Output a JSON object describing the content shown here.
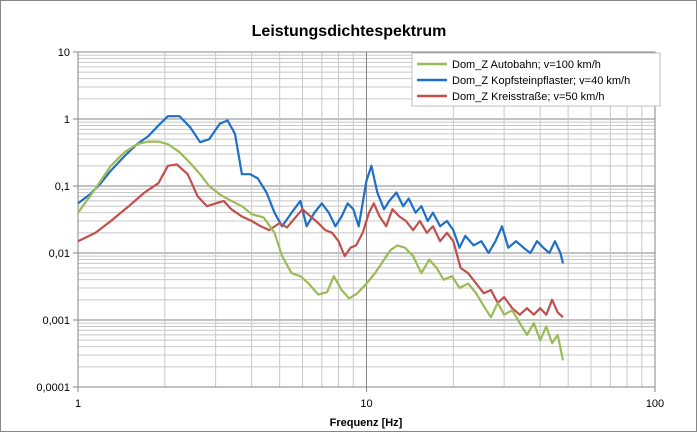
{
  "chart_data": {
    "type": "line",
    "title": "Leistungsdichtespektrum",
    "xlabel": "Frequenz [Hz]",
    "ylabel": "",
    "x_scale": "log",
    "y_scale": "log",
    "xlim": [
      1,
      100
    ],
    "ylim": [
      0.0001,
      10
    ],
    "x_ticks": [
      "1",
      "10",
      "100"
    ],
    "y_ticks": [
      "0,0001",
      "0,001",
      "0,01",
      "0,1",
      "1",
      "10"
    ],
    "grid": true,
    "legend_position": "top-right",
    "series": [
      {
        "name": "Dom_Z Autobahn; v=100 km/h",
        "color": "#9bbb59",
        "points": [
          [
            1.0,
            0.04
          ],
          [
            1.1,
            0.07
          ],
          [
            1.2,
            0.12
          ],
          [
            1.3,
            0.2
          ],
          [
            1.45,
            0.32
          ],
          [
            1.6,
            0.42
          ],
          [
            1.75,
            0.46
          ],
          [
            1.9,
            0.46
          ],
          [
            2.05,
            0.42
          ],
          [
            2.25,
            0.32
          ],
          [
            2.45,
            0.22
          ],
          [
            2.65,
            0.15
          ],
          [
            2.85,
            0.1
          ],
          [
            3.1,
            0.075
          ],
          [
            3.4,
            0.06
          ],
          [
            3.7,
            0.05
          ],
          [
            4.0,
            0.038
          ],
          [
            4.4,
            0.034
          ],
          [
            4.8,
            0.02
          ],
          [
            5.1,
            0.009
          ],
          [
            5.5,
            0.005
          ],
          [
            5.9,
            0.0045
          ],
          [
            6.3,
            0.0035
          ],
          [
            6.8,
            0.0024
          ],
          [
            7.3,
            0.0026
          ],
          [
            7.7,
            0.0045
          ],
          [
            8.2,
            0.0028
          ],
          [
            8.7,
            0.0021
          ],
          [
            9.3,
            0.0025
          ],
          [
            10.0,
            0.0035
          ],
          [
            10.7,
            0.005
          ],
          [
            11.4,
            0.0075
          ],
          [
            12.1,
            0.011
          ],
          [
            12.8,
            0.013
          ],
          [
            13.6,
            0.012
          ],
          [
            14.5,
            0.009
          ],
          [
            15.5,
            0.005
          ],
          [
            16.5,
            0.008
          ],
          [
            17.5,
            0.006
          ],
          [
            18.5,
            0.004
          ],
          [
            19.8,
            0.0045
          ],
          [
            21.0,
            0.003
          ],
          [
            22.5,
            0.0035
          ],
          [
            24.0,
            0.0025
          ],
          [
            25.5,
            0.0016
          ],
          [
            27.0,
            0.0011
          ],
          [
            28.5,
            0.0018
          ],
          [
            30.0,
            0.0012
          ],
          [
            32.0,
            0.0014
          ],
          [
            34.0,
            0.0009
          ],
          [
            36.0,
            0.0006
          ],
          [
            38.0,
            0.0009
          ],
          [
            40.0,
            0.0005
          ],
          [
            42.0,
            0.0008
          ],
          [
            44.0,
            0.00045
          ],
          [
            46.0,
            0.0006
          ],
          [
            48.0,
            0.00025
          ]
        ]
      },
      {
        "name": "Dom_Z Kopfsteinpflaster; v=40 km/h",
        "color": "#1f6fc6",
        "points": [
          [
            1.0,
            0.055
          ],
          [
            1.1,
            0.075
          ],
          [
            1.2,
            0.11
          ],
          [
            1.3,
            0.17
          ],
          [
            1.45,
            0.28
          ],
          [
            1.6,
            0.42
          ],
          [
            1.75,
            0.55
          ],
          [
            1.9,
            0.8
          ],
          [
            2.05,
            1.1
          ],
          [
            2.25,
            1.1
          ],
          [
            2.45,
            0.75
          ],
          [
            2.65,
            0.45
          ],
          [
            2.85,
            0.5
          ],
          [
            3.1,
            0.85
          ],
          [
            3.3,
            0.95
          ],
          [
            3.5,
            0.6
          ],
          [
            3.7,
            0.15
          ],
          [
            3.95,
            0.15
          ],
          [
            4.2,
            0.13
          ],
          [
            4.5,
            0.08
          ],
          [
            4.8,
            0.04
          ],
          [
            5.1,
            0.025
          ],
          [
            5.5,
            0.04
          ],
          [
            5.9,
            0.06
          ],
          [
            6.2,
            0.025
          ],
          [
            6.6,
            0.04
          ],
          [
            7.0,
            0.055
          ],
          [
            7.4,
            0.04
          ],
          [
            7.8,
            0.025
          ],
          [
            8.2,
            0.035
          ],
          [
            8.6,
            0.055
          ],
          [
            9.0,
            0.045
          ],
          [
            9.4,
            0.025
          ],
          [
            10.0,
            0.12
          ],
          [
            10.4,
            0.2
          ],
          [
            10.9,
            0.08
          ],
          [
            11.5,
            0.045
          ],
          [
            12.0,
            0.06
          ],
          [
            12.7,
            0.08
          ],
          [
            13.4,
            0.05
          ],
          [
            14.0,
            0.065
          ],
          [
            14.8,
            0.04
          ],
          [
            15.5,
            0.05
          ],
          [
            16.3,
            0.03
          ],
          [
            17.0,
            0.04
          ],
          [
            18.0,
            0.025
          ],
          [
            19.0,
            0.03
          ],
          [
            20.0,
            0.022
          ],
          [
            21.0,
            0.012
          ],
          [
            22.0,
            0.018
          ],
          [
            23.5,
            0.013
          ],
          [
            25.0,
            0.015
          ],
          [
            26.5,
            0.01
          ],
          [
            28.0,
            0.015
          ],
          [
            29.5,
            0.025
          ],
          [
            31.0,
            0.012
          ],
          [
            33.0,
            0.015
          ],
          [
            35.0,
            0.012
          ],
          [
            37.0,
            0.01
          ],
          [
            39.0,
            0.015
          ],
          [
            41.0,
            0.012
          ],
          [
            43.0,
            0.01
          ],
          [
            45.0,
            0.015
          ],
          [
            47.0,
            0.01
          ],
          [
            48.0,
            0.007
          ]
        ]
      },
      {
        "name": "Dom_Z Kreisstraße; v=50 km/h",
        "color": "#c0504d",
        "points": [
          [
            1.0,
            0.015
          ],
          [
            1.15,
            0.02
          ],
          [
            1.3,
            0.03
          ],
          [
            1.5,
            0.05
          ],
          [
            1.7,
            0.08
          ],
          [
            1.9,
            0.11
          ],
          [
            2.05,
            0.2
          ],
          [
            2.2,
            0.21
          ],
          [
            2.4,
            0.15
          ],
          [
            2.6,
            0.07
          ],
          [
            2.8,
            0.05
          ],
          [
            3.0,
            0.055
          ],
          [
            3.2,
            0.06
          ],
          [
            3.4,
            0.045
          ],
          [
            3.7,
            0.035
          ],
          [
            4.0,
            0.03
          ],
          [
            4.3,
            0.025
          ],
          [
            4.6,
            0.022
          ],
          [
            5.0,
            0.028
          ],
          [
            5.3,
            0.024
          ],
          [
            5.6,
            0.032
          ],
          [
            6.0,
            0.045
          ],
          [
            6.4,
            0.035
          ],
          [
            6.8,
            0.028
          ],
          [
            7.2,
            0.022
          ],
          [
            7.6,
            0.02
          ],
          [
            8.0,
            0.015
          ],
          [
            8.4,
            0.009
          ],
          [
            8.8,
            0.012
          ],
          [
            9.2,
            0.013
          ],
          [
            9.7,
            0.02
          ],
          [
            10.2,
            0.04
          ],
          [
            10.6,
            0.055
          ],
          [
            11.1,
            0.035
          ],
          [
            11.7,
            0.025
          ],
          [
            12.3,
            0.045
          ],
          [
            13.0,
            0.035
          ],
          [
            13.7,
            0.03
          ],
          [
            14.5,
            0.022
          ],
          [
            15.3,
            0.03
          ],
          [
            16.2,
            0.02
          ],
          [
            17.0,
            0.025
          ],
          [
            18.0,
            0.015
          ],
          [
            19.0,
            0.02
          ],
          [
            20.0,
            0.015
          ],
          [
            21.2,
            0.006
          ],
          [
            22.5,
            0.005
          ],
          [
            24.0,
            0.0035
          ],
          [
            25.5,
            0.0025
          ],
          [
            27.0,
            0.0028
          ],
          [
            28.5,
            0.0018
          ],
          [
            30.0,
            0.0022
          ],
          [
            32.0,
            0.0015
          ],
          [
            34.0,
            0.0012
          ],
          [
            36.0,
            0.0015
          ],
          [
            38.0,
            0.0012
          ],
          [
            40.0,
            0.0015
          ],
          [
            42.0,
            0.0012
          ],
          [
            44.0,
            0.002
          ],
          [
            46.0,
            0.0013
          ],
          [
            48.0,
            0.0011
          ]
        ]
      }
    ]
  }
}
